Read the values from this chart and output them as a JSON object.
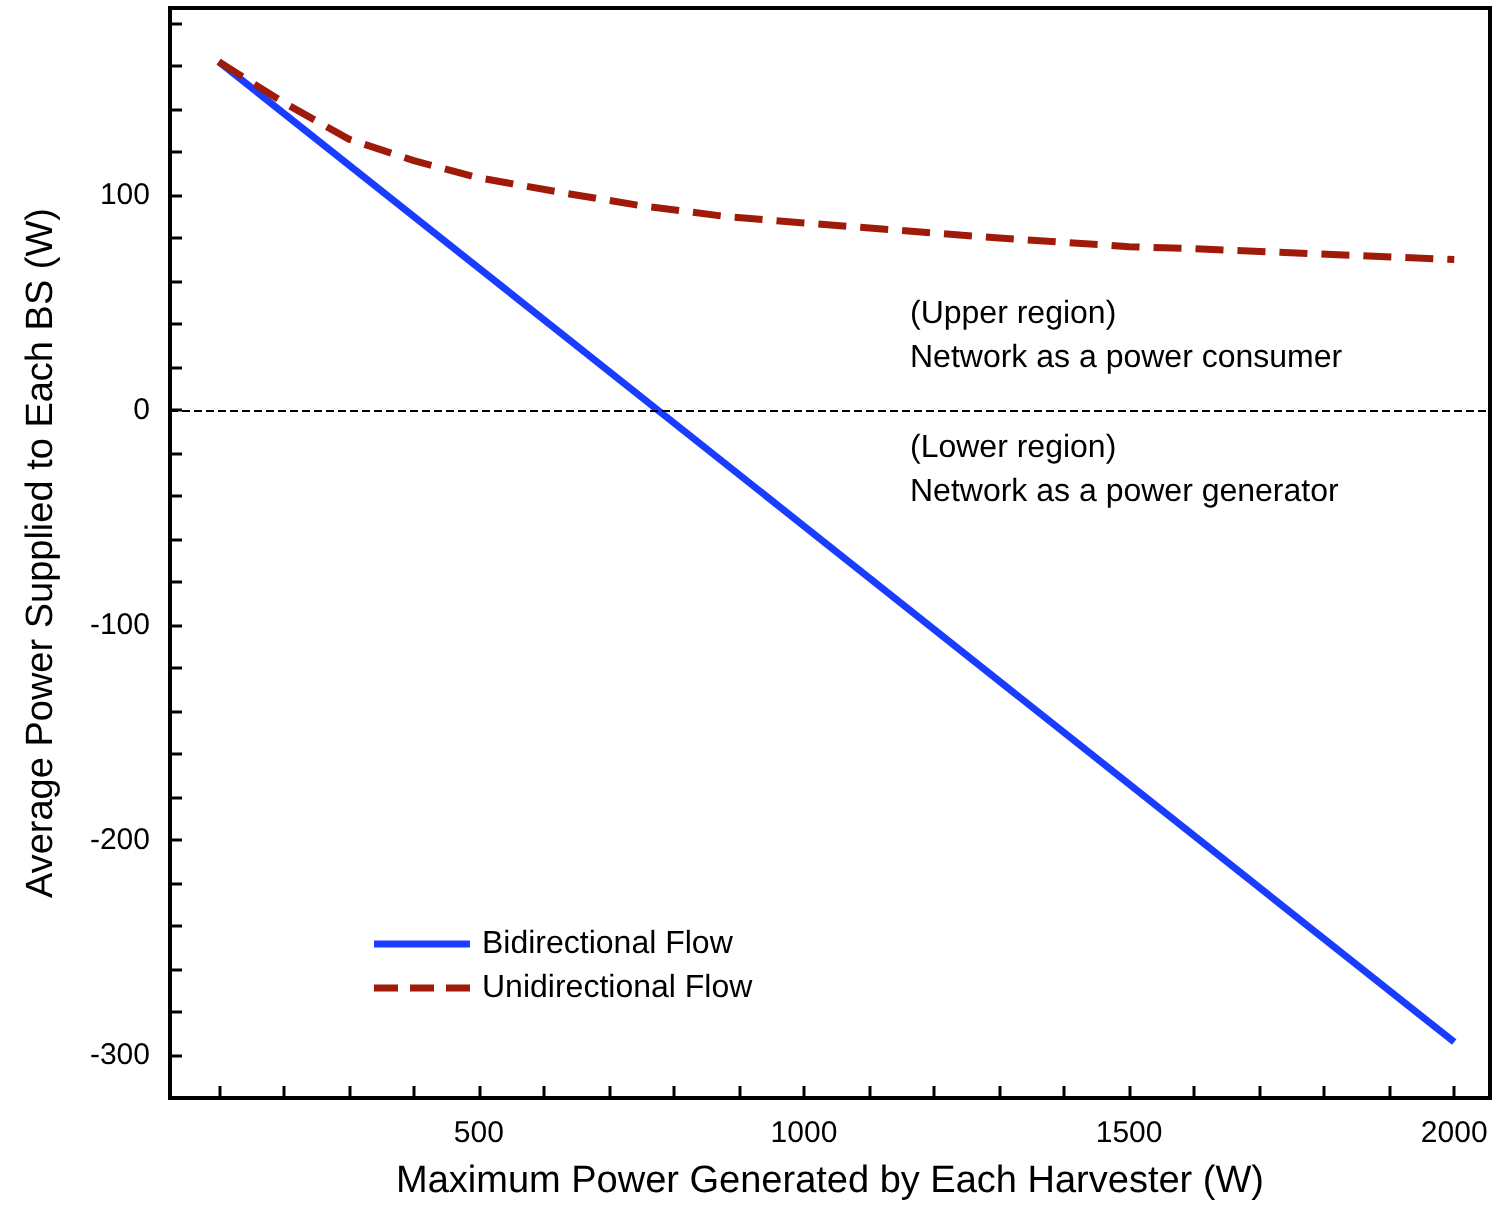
{
  "chart_data": {
    "type": "line",
    "xlabel": "Maximum Power Generated by Each Harvester (W)",
    "ylabel": "Average Power Supplied to Each BS (W)",
    "xlim": [
      25,
      2055
    ],
    "ylim": [
      -320,
      187
    ],
    "xticks": [
      {
        "value": 100,
        "label": null
      },
      {
        "value": 200,
        "label": null
      },
      {
        "value": 300,
        "label": null
      },
      {
        "value": 400,
        "label": null
      },
      500,
      {
        "value": 600,
        "label": null
      },
      {
        "value": 700,
        "label": null
      },
      {
        "value": 800,
        "label": null
      },
      {
        "value": 900,
        "label": null
      },
      1000,
      {
        "value": 1100,
        "label": null
      },
      {
        "value": 1200,
        "label": null
      },
      {
        "value": 1300,
        "label": null
      },
      {
        "value": 1400,
        "label": null
      },
      1500,
      {
        "value": 1600,
        "label": null
      },
      {
        "value": 1700,
        "label": null
      },
      {
        "value": 1800,
        "label": null
      },
      {
        "value": 1900,
        "label": null
      },
      2000
    ],
    "yticks": [
      {
        "value": -320,
        "label": null
      },
      -300,
      {
        "value": -280,
        "label": null
      },
      {
        "value": -260,
        "label": null
      },
      {
        "value": -240,
        "label": null
      },
      {
        "value": -220,
        "label": null
      },
      -200,
      {
        "value": -180,
        "label": null
      },
      {
        "value": -160,
        "label": null
      },
      {
        "value": -140,
        "label": null
      },
      {
        "value": -120,
        "label": null
      },
      -100,
      {
        "value": -80,
        "label": null
      },
      {
        "value": -60,
        "label": null
      },
      {
        "value": -40,
        "label": null
      },
      {
        "value": -20,
        "label": null
      },
      0,
      {
        "value": 20,
        "label": null
      },
      {
        "value": 40,
        "label": null
      },
      {
        "value": 60,
        "label": null
      },
      {
        "value": 80,
        "label": null
      },
      100,
      {
        "value": 120,
        "label": null
      },
      {
        "value": 140,
        "label": null
      },
      {
        "value": 160,
        "label": null
      },
      {
        "value": 180,
        "label": null
      }
    ],
    "grid": false,
    "legend": "bottom left",
    "marker": "none",
    "series": [
      {
        "name": "Bidirectional Flow",
        "color": "#1a3cff",
        "line_style": "solid",
        "x": [
          100,
          2000
        ],
        "values": [
          162,
          -294
        ]
      },
      {
        "name": "Unidirectional Flow",
        "color": "#a01a0a",
        "line_style": "dashed",
        "x": [
          100,
          200,
          300,
          400,
          500,
          630,
          750,
          880,
          1000,
          1300,
          1500,
          1600,
          2000
        ],
        "values": [
          162,
          143,
          126,
          116,
          108,
          101,
          95,
          90,
          87,
          80,
          76,
          75,
          70
        ]
      }
    ],
    "ref_lines": [
      {
        "axis": "y",
        "value": 0,
        "label": null,
        "color": "#000000",
        "line_style": "dashed"
      }
    ],
    "annotations": [
      "(Upper region)\nNetwork as a power consumer",
      "(Lower region)\nNetwork as a power generator"
    ]
  }
}
